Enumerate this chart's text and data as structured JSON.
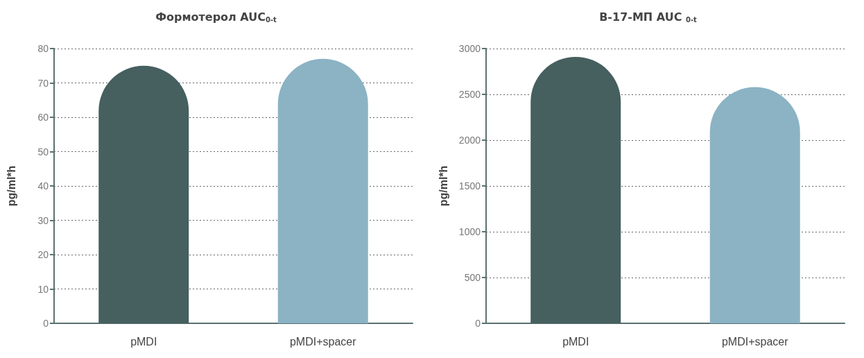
{
  "chart_data": [
    {
      "type": "bar",
      "title": "Формотерол AUC$_{0-t}$",
      "ylabel": "pg/ml*h",
      "categories": [
        "pMDI",
        "pMDI+spacer"
      ],
      "values": [
        75,
        77
      ],
      "colors": [
        "#465f5f",
        "#8bb3c4"
      ],
      "ylim": [
        0,
        80
      ],
      "yticks": [
        0,
        10,
        20,
        30,
        40,
        50,
        60,
        70,
        80
      ],
      "grid": "y",
      "line_style": "dotted"
    },
    {
      "type": "bar",
      "title": "В-17-МП AUC $_{0-t}$",
      "ylabel": "pg/ml*h",
      "categories": [
        "pMDI",
        "pMDI+spacer"
      ],
      "values": [
        2910,
        2580
      ],
      "colors": [
        "#465f5f",
        "#8bb3c4"
      ],
      "ylim": [
        0,
        3000
      ],
      "yticks": [
        0,
        500,
        1000,
        1500,
        2000,
        2500,
        3000
      ],
      "grid": "y",
      "line_style": "dotted"
    }
  ]
}
